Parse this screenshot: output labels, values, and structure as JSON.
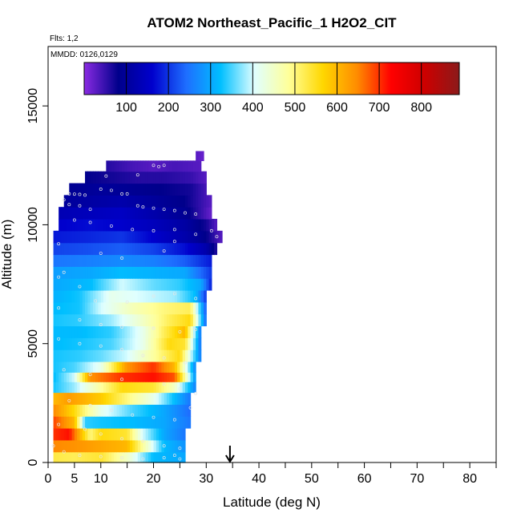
{
  "chart_data": {
    "type": "heatmap",
    "title": "ATOM2 Northeast_Pacific_1 H2O2_CIT",
    "flights_note": "Flts: 1,2",
    "date_note": "MMDD: 0126,0129",
    "xlabel": "Latitude (deg N)",
    "ylabel": "Altitude (m)",
    "xlim": [
      0,
      85
    ],
    "ylim": [
      0,
      17500
    ],
    "x_ticks_labeled": [
      "0",
      "5",
      "10",
      "20",
      "30",
      "40",
      "50",
      "60",
      "70",
      "80"
    ],
    "x_tick_values": [
      0,
      5,
      10,
      20,
      30,
      40,
      50,
      60,
      70,
      80
    ],
    "x_minor_ticks": [
      15,
      25,
      35,
      45,
      55,
      65,
      75,
      85
    ],
    "y_ticks": [
      "0",
      "5000",
      "10000",
      "15000"
    ],
    "y_tick_values": [
      0,
      5000,
      10000,
      15000
    ],
    "colorbar": {
      "min": 0,
      "max": 890,
      "tick_labels": [
        "100",
        "200",
        "300",
        "400",
        "500",
        "600",
        "700",
        "800"
      ],
      "tick_values": [
        100,
        200,
        300,
        400,
        500,
        600,
        700,
        800
      ],
      "colors": [
        "#8a2be2",
        "#00008b",
        "#0000cd",
        "#1e6fff",
        "#00bfff",
        "#e0ffff",
        "#ffff99",
        "#ffd700",
        "#ff8c00",
        "#ff0000",
        "#cc0000",
        "#8b1a1a"
      ]
    },
    "marker_latitude": 34.5,
    "layers": [
      {
        "alt": 200,
        "lat0": 1,
        "lat1": 26,
        "values": [
          [
            1,
            530
          ],
          [
            5,
            520
          ],
          [
            10,
            540
          ],
          [
            15,
            450
          ],
          [
            20,
            320
          ],
          [
            26,
            300
          ]
        ]
      },
      {
        "alt": 700,
        "lat0": 1,
        "lat1": 26,
        "values": [
          [
            1,
            650
          ],
          [
            5,
            640
          ],
          [
            10,
            620
          ],
          [
            15,
            600
          ],
          [
            18,
            480
          ],
          [
            22,
            320
          ],
          [
            26,
            280
          ]
        ]
      },
      {
        "alt": 1200,
        "lat0": 1,
        "lat1": 26,
        "values": [
          [
            1,
            700
          ],
          [
            4,
            720
          ],
          [
            8,
            500
          ],
          [
            10,
            560
          ],
          [
            15,
            540
          ],
          [
            18,
            400
          ],
          [
            22,
            300
          ],
          [
            26,
            250
          ]
        ]
      },
      {
        "alt": 1700,
        "lat0": 1,
        "lat1": 27,
        "values": [
          [
            1,
            690
          ],
          [
            5,
            600
          ],
          [
            7,
            340
          ],
          [
            10,
            330
          ],
          [
            16,
            320
          ],
          [
            22,
            300
          ],
          [
            27,
            250
          ]
        ]
      },
      {
        "alt": 2200,
        "lat0": 1,
        "lat1": 27,
        "values": [
          [
            1,
            650
          ],
          [
            5,
            560
          ],
          [
            7,
            500
          ],
          [
            10,
            420
          ],
          [
            16,
            350
          ],
          [
            22,
            300
          ],
          [
            27,
            240
          ]
        ]
      },
      {
        "alt": 2700,
        "lat0": 1,
        "lat1": 27,
        "values": [
          [
            1,
            600
          ],
          [
            4,
            630
          ],
          [
            10,
            580
          ],
          [
            15,
            500
          ],
          [
            20,
            420
          ],
          [
            24,
            320
          ],
          [
            27,
            250
          ]
        ]
      },
      {
        "alt": 3200,
        "lat0": 1,
        "lat1": 28,
        "values": [
          [
            1,
            330
          ],
          [
            5,
            380
          ],
          [
            10,
            480
          ],
          [
            14,
            560
          ],
          [
            20,
            540
          ],
          [
            24,
            450
          ],
          [
            28,
            260
          ]
        ]
      },
      {
        "alt": 3600,
        "lat0": 1,
        "lat1": 28,
        "values": [
          [
            1,
            320
          ],
          [
            5,
            400
          ],
          [
            8,
            640
          ],
          [
            14,
            700
          ],
          [
            20,
            720
          ],
          [
            24,
            680
          ],
          [
            28,
            270
          ]
        ]
      },
      {
        "alt": 4000,
        "lat0": 1,
        "lat1": 28,
        "values": [
          [
            1,
            330
          ],
          [
            5,
            350
          ],
          [
            10,
            420
          ],
          [
            15,
            640
          ],
          [
            20,
            700
          ],
          [
            24,
            600
          ],
          [
            28,
            260
          ]
        ]
      },
      {
        "alt": 4500,
        "lat0": 1,
        "lat1": 29,
        "values": [
          [
            1,
            330
          ],
          [
            6,
            340
          ],
          [
            10,
            360
          ],
          [
            15,
            400
          ],
          [
            20,
            480
          ],
          [
            25,
            560
          ],
          [
            29,
            250
          ]
        ]
      },
      {
        "alt": 5000,
        "lat0": 1,
        "lat1": 29,
        "values": [
          [
            1,
            320
          ],
          [
            6,
            330
          ],
          [
            12,
            350
          ],
          [
            18,
            420
          ],
          [
            23,
            560
          ],
          [
            26,
            540
          ],
          [
            29,
            240
          ]
        ]
      },
      {
        "alt": 5500,
        "lat0": 1,
        "lat1": 29,
        "values": [
          [
            1,
            320
          ],
          [
            6,
            320
          ],
          [
            12,
            340
          ],
          [
            18,
            420
          ],
          [
            22,
            520
          ],
          [
            26,
            600
          ],
          [
            29,
            240
          ]
        ]
      },
      {
        "alt": 6000,
        "lat0": 1,
        "lat1": 30,
        "values": [
          [
            1,
            330
          ],
          [
            6,
            340
          ],
          [
            12,
            380
          ],
          [
            18,
            450
          ],
          [
            23,
            520
          ],
          [
            27,
            560
          ],
          [
            30,
            230
          ]
        ]
      },
      {
        "alt": 6500,
        "lat0": 1,
        "lat1": 30,
        "values": [
          [
            1,
            320
          ],
          [
            6,
            330
          ],
          [
            10,
            400
          ],
          [
            16,
            460
          ],
          [
            22,
            500
          ],
          [
            27,
            520
          ],
          [
            30,
            220
          ]
        ]
      },
      {
        "alt": 7000,
        "lat0": 1,
        "lat1": 30,
        "values": [
          [
            1,
            310
          ],
          [
            6,
            330
          ],
          [
            12,
            420
          ],
          [
            18,
            400
          ],
          [
            24,
            380
          ],
          [
            28,
            320
          ],
          [
            30,
            200
          ]
        ]
      },
      {
        "alt": 7500,
        "lat0": 1,
        "lat1": 31,
        "values": [
          [
            1,
            300
          ],
          [
            8,
            320
          ],
          [
            14,
            400
          ],
          [
            20,
            360
          ],
          [
            25,
            340
          ],
          [
            29,
            300
          ],
          [
            31,
            180
          ]
        ]
      },
      {
        "alt": 8000,
        "lat0": 1,
        "lat1": 31,
        "values": [
          [
            1,
            290
          ],
          [
            8,
            300
          ],
          [
            14,
            320
          ],
          [
            20,
            310
          ],
          [
            26,
            300
          ],
          [
            31,
            200
          ]
        ]
      },
      {
        "alt": 8500,
        "lat0": 1,
        "lat1": 31,
        "values": [
          [
            1,
            250
          ],
          [
            8,
            260
          ],
          [
            14,
            270
          ],
          [
            20,
            260
          ],
          [
            26,
            230
          ],
          [
            31,
            180
          ]
        ]
      },
      {
        "alt": 9000,
        "lat0": 1,
        "lat1": 32,
        "values": [
          [
            1,
            210
          ],
          [
            8,
            220
          ],
          [
            14,
            230
          ],
          [
            20,
            210
          ],
          [
            26,
            170
          ],
          [
            30,
            120
          ],
          [
            32,
            60
          ]
        ]
      },
      {
        "alt": 9500,
        "lat0": 1,
        "lat1": 33,
        "values": [
          [
            1,
            180
          ],
          [
            8,
            190
          ],
          [
            14,
            200
          ],
          [
            20,
            160
          ],
          [
            26,
            120
          ],
          [
            30,
            80
          ],
          [
            33,
            30
          ]
        ]
      },
      {
        "alt": 10000,
        "lat0": 2,
        "lat1": 32,
        "values": [
          [
            2,
            160
          ],
          [
            8,
            170
          ],
          [
            14,
            160
          ],
          [
            20,
            140
          ],
          [
            26,
            110
          ],
          [
            30,
            70
          ],
          [
            32,
            30
          ]
        ]
      },
      {
        "alt": 10500,
        "lat0": 2,
        "lat1": 31,
        "values": [
          [
            2,
            130
          ],
          [
            8,
            140
          ],
          [
            14,
            150
          ],
          [
            20,
            120
          ],
          [
            26,
            90
          ],
          [
            29,
            50
          ],
          [
            31,
            20
          ]
        ]
      },
      {
        "alt": 11000,
        "lat0": 3,
        "lat1": 31,
        "values": [
          [
            3,
            100
          ],
          [
            8,
            110
          ],
          [
            14,
            120
          ],
          [
            20,
            100
          ],
          [
            26,
            80
          ],
          [
            31,
            30
          ]
        ]
      },
      {
        "alt": 11500,
        "lat0": 4,
        "lat1": 30,
        "values": [
          [
            4,
            90
          ],
          [
            10,
            100
          ],
          [
            16,
            90
          ],
          [
            22,
            80
          ],
          [
            27,
            70
          ],
          [
            30,
            40
          ]
        ]
      },
      {
        "alt": 12000,
        "lat0": 7,
        "lat1": 30,
        "values": [
          [
            7,
            80
          ],
          [
            12,
            70
          ],
          [
            17,
            60
          ],
          [
            22,
            60
          ],
          [
            27,
            50
          ],
          [
            30,
            30
          ]
        ]
      },
      {
        "alt": 12500,
        "lat0": 11,
        "lat1": 29,
        "values": [
          [
            11,
            60
          ],
          [
            16,
            40
          ],
          [
            20,
            30
          ],
          [
            24,
            40
          ],
          [
            29,
            30
          ]
        ]
      },
      {
        "alt": 12900,
        "lat0": 28,
        "lat1": 29.5,
        "values": [
          [
            28,
            30
          ],
          [
            29.5,
            20
          ]
        ]
      }
    ],
    "sample_points": [
      [
        20,
        12500
      ],
      [
        21,
        12450
      ],
      [
        22,
        12500
      ],
      [
        11,
        12050
      ],
      [
        17,
        12100
      ],
      [
        10,
        11500
      ],
      [
        12,
        11450
      ],
      [
        14,
        11300
      ],
      [
        15,
        11300
      ],
      [
        4,
        11300
      ],
      [
        5,
        11290
      ],
      [
        6,
        11280
      ],
      [
        7,
        11250
      ],
      [
        3,
        11050
      ],
      [
        4,
        10850
      ],
      [
        6,
        10800
      ],
      [
        8,
        10650
      ],
      [
        17,
        10800
      ],
      [
        18,
        10750
      ],
      [
        20,
        10700
      ],
      [
        22,
        10650
      ],
      [
        24,
        10600
      ],
      [
        26,
        10500
      ],
      [
        28,
        10450
      ],
      [
        5,
        10200
      ],
      [
        8,
        10100
      ],
      [
        12,
        9950
      ],
      [
        16,
        9800
      ],
      [
        20,
        9750
      ],
      [
        24,
        9800
      ],
      [
        28,
        9600
      ],
      [
        31,
        9750
      ],
      [
        32,
        9500
      ],
      [
        2,
        9200
      ],
      [
        10,
        8800
      ],
      [
        14,
        8600
      ],
      [
        22,
        8900
      ],
      [
        24,
        9300
      ],
      [
        3,
        8000
      ],
      [
        2,
        7800
      ],
      [
        6,
        7400
      ],
      [
        9,
        6800
      ],
      [
        15,
        6750
      ],
      [
        20,
        7000
      ],
      [
        24,
        7100
      ],
      [
        28,
        6900
      ],
      [
        2,
        6500
      ],
      [
        6,
        6000
      ],
      [
        10,
        5800
      ],
      [
        14,
        5700
      ],
      [
        20,
        5650
      ],
      [
        25,
        5500
      ],
      [
        28,
        5600
      ],
      [
        2,
        5200
      ],
      [
        6,
        5000
      ],
      [
        10,
        4900
      ],
      [
        14,
        4750
      ],
      [
        18,
        4500
      ],
      [
        22,
        4400
      ],
      [
        26,
        4200
      ],
      [
        3,
        3900
      ],
      [
        8,
        3700
      ],
      [
        14,
        3500
      ],
      [
        22,
        3300
      ],
      [
        25,
        3100
      ],
      [
        28,
        2900
      ],
      [
        4,
        2600
      ],
      [
        8,
        2400
      ],
      [
        12,
        2200
      ],
      [
        16,
        2000
      ],
      [
        20,
        1900
      ],
      [
        24,
        1800
      ],
      [
        27,
        2300
      ],
      [
        2,
        1600
      ],
      [
        7,
        1400
      ],
      [
        10,
        1200
      ],
      [
        14,
        1000
      ],
      [
        18,
        900
      ],
      [
        22,
        700
      ],
      [
        25,
        600
      ],
      [
        1,
        700
      ],
      [
        3,
        450
      ],
      [
        6,
        300
      ],
      [
        10,
        250
      ],
      [
        14,
        200
      ],
      [
        18,
        150
      ],
      [
        22,
        200
      ],
      [
        24,
        300
      ],
      [
        25,
        150
      ]
    ]
  }
}
